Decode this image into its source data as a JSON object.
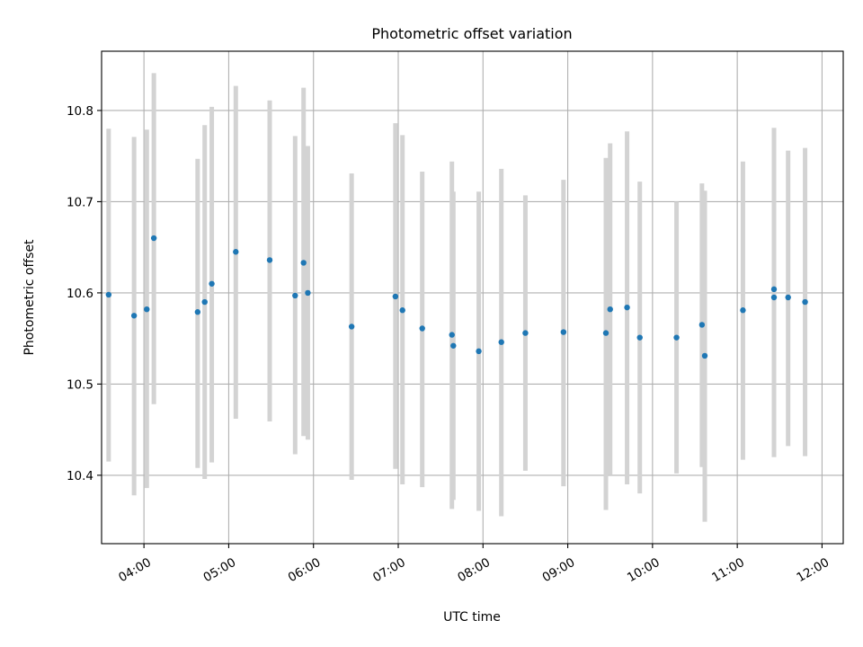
{
  "chart_data": {
    "type": "scatter",
    "title": "Photometric offset variation",
    "xlabel": "UTC time",
    "ylabel": "Photometric offset",
    "x_axis_kind": "time (HH:MM, UTC)",
    "xlim": [
      "03:30",
      "12:15"
    ],
    "ylim": [
      10.325,
      10.865
    ],
    "x_ticks": [
      "04:00",
      "05:00",
      "06:00",
      "07:00",
      "08:00",
      "09:00",
      "10:00",
      "11:00",
      "12:00"
    ],
    "y_ticks": [
      "10.4",
      "10.5",
      "10.6",
      "10.7",
      "10.8"
    ],
    "y_tick_values": [
      10.4,
      10.5,
      10.6,
      10.7,
      10.8
    ],
    "grid": true,
    "colors": {
      "point": "#1f77b4",
      "errorbar": "#d3d3d3",
      "grid": "#b0b0b0"
    },
    "points": [
      {
        "x": "03:35",
        "y": 10.598,
        "ylow": 10.415,
        "yhigh": 10.78
      },
      {
        "x": "03:53",
        "y": 10.575,
        "ylow": 10.378,
        "yhigh": 10.771
      },
      {
        "x": "04:02",
        "y": 10.582,
        "ylow": 10.386,
        "yhigh": 10.779
      },
      {
        "x": "04:07",
        "y": 10.66,
        "ylow": 10.478,
        "yhigh": 10.841
      },
      {
        "x": "04:38",
        "y": 10.579,
        "ylow": 10.408,
        "yhigh": 10.747
      },
      {
        "x": "04:43",
        "y": 10.59,
        "ylow": 10.396,
        "yhigh": 10.784
      },
      {
        "x": "04:48",
        "y": 10.61,
        "ylow": 10.414,
        "yhigh": 10.804
      },
      {
        "x": "05:05",
        "y": 10.645,
        "ylow": 10.462,
        "yhigh": 10.827
      },
      {
        "x": "05:29",
        "y": 10.636,
        "ylow": 10.459,
        "yhigh": 10.811
      },
      {
        "x": "05:47",
        "y": 10.597,
        "ylow": 10.423,
        "yhigh": 10.772
      },
      {
        "x": "05:53",
        "y": 10.633,
        "ylow": 10.443,
        "yhigh": 10.825
      },
      {
        "x": "05:56",
        "y": 10.6,
        "ylow": 10.439,
        "yhigh": 10.761
      },
      {
        "x": "06:27",
        "y": 10.563,
        "ylow": 10.395,
        "yhigh": 10.731
      },
      {
        "x": "06:58",
        "y": 10.596,
        "ylow": 10.407,
        "yhigh": 10.786
      },
      {
        "x": "07:03",
        "y": 10.581,
        "ylow": 10.39,
        "yhigh": 10.773
      },
      {
        "x": "07:17",
        "y": 10.561,
        "ylow": 10.387,
        "yhigh": 10.733
      },
      {
        "x": "07:38",
        "y": 10.554,
        "ylow": 10.363,
        "yhigh": 10.744
      },
      {
        "x": "07:39",
        "y": 10.542,
        "ylow": 10.373,
        "yhigh": 10.711
      },
      {
        "x": "07:57",
        "y": 10.536,
        "ylow": 10.361,
        "yhigh": 10.711
      },
      {
        "x": "08:13",
        "y": 10.546,
        "ylow": 10.355,
        "yhigh": 10.736
      },
      {
        "x": "08:30",
        "y": 10.556,
        "ylow": 10.405,
        "yhigh": 10.707
      },
      {
        "x": "08:57",
        "y": 10.557,
        "ylow": 10.388,
        "yhigh": 10.724
      },
      {
        "x": "09:27",
        "y": 10.556,
        "ylow": 10.362,
        "yhigh": 10.748
      },
      {
        "x": "09:30",
        "y": 10.582,
        "ylow": 10.4,
        "yhigh": 10.764
      },
      {
        "x": "09:42",
        "y": 10.584,
        "ylow": 10.39,
        "yhigh": 10.777
      },
      {
        "x": "09:51",
        "y": 10.551,
        "ylow": 10.38,
        "yhigh": 10.722
      },
      {
        "x": "10:17",
        "y": 10.551,
        "ylow": 10.402,
        "yhigh": 10.7
      },
      {
        "x": "10:35",
        "y": 10.565,
        "ylow": 10.409,
        "yhigh": 10.72
      },
      {
        "x": "10:37",
        "y": 10.531,
        "ylow": 10.349,
        "yhigh": 10.712
      },
      {
        "x": "11:04",
        "y": 10.581,
        "ylow": 10.417,
        "yhigh": 10.744
      },
      {
        "x": "11:26",
        "y": 10.604,
        "ylow": 10.42,
        "yhigh": 10.781
      },
      {
        "x": "11:26",
        "y": 10.595,
        "ylow": 10.42,
        "yhigh": 10.77
      },
      {
        "x": "11:36",
        "y": 10.595,
        "ylow": 10.432,
        "yhigh": 10.756
      },
      {
        "x": "11:48",
        "y": 10.59,
        "ylow": 10.421,
        "yhigh": 10.759
      }
    ]
  }
}
